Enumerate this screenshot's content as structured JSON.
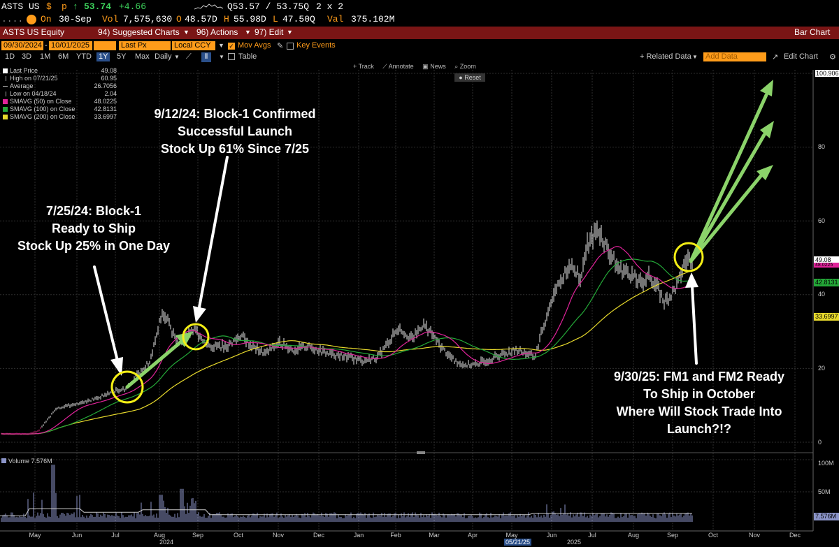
{
  "header": {
    "ticker": "ASTS US",
    "currency": "$",
    "flag": "p",
    "arrow": "↑",
    "price": "53.74",
    "change": "+4.66",
    "quote": "Q53.57 / 53.75Q",
    "size": "2 x 2",
    "menu_icon": "....",
    "date_label": "On",
    "date": "30-Sep",
    "vol_label": "Vol",
    "vol": "7,575,630",
    "o_label": "O",
    "open": "48.57D",
    "h_label": "H",
    "high": "55.98D",
    "l_label": "L",
    "low": "47.50Q",
    "val_label": "Val",
    "value": "375.102M"
  },
  "titlebar": {
    "security": "ASTS US Equity",
    "suggested": "94) Suggested Charts",
    "actions": "96) Actions",
    "edit": "97) Edit",
    "right": "Bar Chart"
  },
  "controls": {
    "start_date": "09/30/2024",
    "end_date": "10/01/2025",
    "field": "Last Px",
    "currency": "Local CCY",
    "mov_avgs": "Mov Avgs",
    "key_events": "Key Events",
    "periods": [
      "1D",
      "3D",
      "1M",
      "6M",
      "YTD",
      "1Y",
      "5Y",
      "Max"
    ],
    "selected_period": "1Y",
    "frequency": "Daily",
    "table": "Table",
    "related_data": "+ Related Data",
    "add_data": "Add Data",
    "edit_chart": "Edit Chart"
  },
  "tools": {
    "track": "Track",
    "annotate": "Annotate",
    "news": "News",
    "zoom": "Zoom",
    "reset": "Reset"
  },
  "legend": [
    {
      "label": "Last Price",
      "value": "49.08",
      "color": "#ffffff"
    },
    {
      "label": "High on 07/21/25",
      "value": "60.95",
      "color": ""
    },
    {
      "label": "Average",
      "value": "26.7056",
      "color": ""
    },
    {
      "label": "Low on 04/18/24",
      "value": "2.04",
      "color": ""
    },
    {
      "label": "SMAVG (50)  on Close",
      "value": "48.0225",
      "color": "#e0239a"
    },
    {
      "label": "SMAVG (100)  on Close",
      "value": "42.8131",
      "color": "#24a838"
    },
    {
      "label": "SMAVG (200)  on Close",
      "value": "33.6997",
      "color": "#e7d92c"
    }
  ],
  "annotations": {
    "a1": [
      "7/25/24: Block-1",
      "Ready to Ship",
      "Stock Up 25% in One Day"
    ],
    "a2": [
      "9/12/24: Block-1 Confirmed",
      "Successful Launch",
      "Stock Up 61% Since 7/25"
    ],
    "a3": [
      "9/30/25: FM1 and FM2 Ready",
      "To Ship in October",
      "Where Will Stock Trade Into",
      "Launch?!?"
    ]
  },
  "axis": {
    "price_ticks": [
      "100",
      "80",
      "60",
      "40",
      "20",
      "0"
    ],
    "top_tag": "100.9062",
    "volume_ticks": [
      "100M",
      "50M"
    ],
    "months": [
      "May",
      "Jun",
      "Jul",
      "Aug",
      "Sep",
      "Oct",
      "Nov",
      "Dec",
      "Jan",
      "Feb",
      "Mar",
      "Apr",
      "May",
      "Jun",
      "Jul",
      "Aug",
      "Sep",
      "Oct",
      "Nov",
      "Dec"
    ],
    "year1": "2024",
    "year2": "2025",
    "date_marker": "05/21/25"
  },
  "volume": {
    "label": "Volume",
    "value": "7.576M",
    "tag": "7.576M"
  },
  "tags": {
    "last": "49.08",
    "sma50": "48.0225",
    "sma100": "42.8131",
    "sma200": "33.6997"
  },
  "colors": {
    "sma50": "#e0239a",
    "sma100": "#24a838",
    "sma200": "#e7d92c",
    "arrow": "#8bd36a",
    "circle": "#f3ee15",
    "titlebar": "#7a1515",
    "input": "#ff9c1a"
  }
}
